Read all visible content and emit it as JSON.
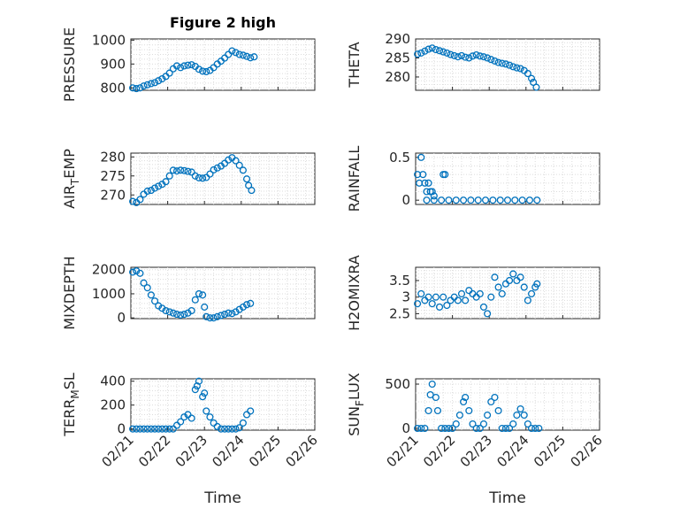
{
  "figure": {
    "title": "Figure 2 high"
  },
  "chart_data": [
    {
      "type": "scatter",
      "ylabel": "PRESSURE",
      "ylabel_sub": "",
      "ylabel_tail": "",
      "xlabel": "",
      "title": "Figure 2 high",
      "x_date_labels": [],
      "yticks": [
        800,
        900,
        1000
      ],
      "ylim": [
        790,
        1005
      ],
      "xlim": [
        0,
        5
      ],
      "marker": "o",
      "grid": true,
      "points": [
        [
          0.05,
          800
        ],
        [
          0.15,
          797
        ],
        [
          0.25,
          800
        ],
        [
          0.35,
          808
        ],
        [
          0.45,
          813
        ],
        [
          0.55,
          818
        ],
        [
          0.65,
          822
        ],
        [
          0.75,
          830
        ],
        [
          0.85,
          838
        ],
        [
          0.95,
          848
        ],
        [
          1.05,
          862
        ],
        [
          1.15,
          880
        ],
        [
          1.25,
          892
        ],
        [
          1.35,
          885
        ],
        [
          1.45,
          892
        ],
        [
          1.55,
          895
        ],
        [
          1.65,
          897
        ],
        [
          1.75,
          890
        ],
        [
          1.85,
          878
        ],
        [
          1.95,
          870
        ],
        [
          2.05,
          868
        ],
        [
          2.15,
          873
        ],
        [
          2.25,
          885
        ],
        [
          2.35,
          900
        ],
        [
          2.45,
          912
        ],
        [
          2.55,
          925
        ],
        [
          2.65,
          940
        ],
        [
          2.75,
          955
        ],
        [
          2.85,
          948
        ],
        [
          2.95,
          940
        ],
        [
          3.05,
          937
        ],
        [
          3.15,
          932
        ],
        [
          3.25,
          926
        ],
        [
          3.35,
          930
        ]
      ]
    },
    {
      "type": "scatter",
      "ylabel": "THETA",
      "ylabel_sub": "",
      "ylabel_tail": "",
      "xlabel": "",
      "x_date_labels": [],
      "yticks": [
        280,
        285,
        290
      ],
      "ylim": [
        276.5,
        290
      ],
      "xlim": [
        0,
        5
      ],
      "marker": "o",
      "grid": true,
      "points": [
        [
          0.05,
          286
        ],
        [
          0.15,
          286.3
        ],
        [
          0.25,
          286.8
        ],
        [
          0.35,
          287.3
        ],
        [
          0.45,
          287.6
        ],
        [
          0.55,
          287.2
        ],
        [
          0.65,
          286.9
        ],
        [
          0.75,
          286.6
        ],
        [
          0.85,
          286.3
        ],
        [
          0.95,
          285.9
        ],
        [
          1.05,
          285.6
        ],
        [
          1.15,
          285.3
        ],
        [
          1.25,
          285.6
        ],
        [
          1.35,
          285.2
        ],
        [
          1.45,
          285
        ],
        [
          1.55,
          285.5
        ],
        [
          1.65,
          285.8
        ],
        [
          1.75,
          285.5
        ],
        [
          1.85,
          285.3
        ],
        [
          1.95,
          285
        ],
        [
          2.05,
          284.6
        ],
        [
          2.15,
          284.2
        ],
        [
          2.25,
          283.8
        ],
        [
          2.35,
          283.6
        ],
        [
          2.45,
          283.4
        ],
        [
          2.55,
          283.1
        ],
        [
          2.65,
          282.7
        ],
        [
          2.75,
          282.4
        ],
        [
          2.85,
          282.2
        ],
        [
          2.95,
          281.7
        ],
        [
          3.05,
          280.9
        ],
        [
          3.15,
          279.6
        ],
        [
          3.2,
          278.6
        ],
        [
          3.28,
          277.3
        ]
      ]
    },
    {
      "type": "scatter",
      "ylabel": "AIR",
      "ylabel_sub": "T",
      "ylabel_tail": "EMP",
      "xlabel": "",
      "x_date_labels": [],
      "yticks": [
        270,
        275,
        280
      ],
      "ylim": [
        267.5,
        281
      ],
      "xlim": [
        0,
        5
      ],
      "marker": "o",
      "grid": true,
      "points": [
        [
          0.05,
          268.3
        ],
        [
          0.15,
          268
        ],
        [
          0.25,
          268.8
        ],
        [
          0.35,
          270.2
        ],
        [
          0.45,
          271
        ],
        [
          0.55,
          271.2
        ],
        [
          0.65,
          271.8
        ],
        [
          0.75,
          272.3
        ],
        [
          0.85,
          272.8
        ],
        [
          0.95,
          273.5
        ],
        [
          1.05,
          275
        ],
        [
          1.15,
          276.5
        ],
        [
          1.25,
          276.3
        ],
        [
          1.35,
          276.5
        ],
        [
          1.45,
          276.4
        ],
        [
          1.55,
          276.2
        ],
        [
          1.65,
          276
        ],
        [
          1.75,
          275
        ],
        [
          1.85,
          274.5
        ],
        [
          1.95,
          274.4
        ],
        [
          2.05,
          274.6
        ],
        [
          2.15,
          275.5
        ],
        [
          2.25,
          276.6
        ],
        [
          2.35,
          277.1
        ],
        [
          2.45,
          277.6
        ],
        [
          2.55,
          278.3
        ],
        [
          2.65,
          279.2
        ],
        [
          2.75,
          279.8
        ],
        [
          2.85,
          279
        ],
        [
          2.95,
          277.8
        ],
        [
          3.05,
          276.5
        ],
        [
          3.15,
          274.2
        ],
        [
          3.2,
          272.5
        ],
        [
          3.28,
          271.2
        ]
      ]
    },
    {
      "type": "scatter",
      "ylabel": "RAINFALL",
      "ylabel_sub": "",
      "ylabel_tail": "",
      "xlabel": "",
      "x_date_labels": [],
      "yticks": [
        0,
        0.5
      ],
      "ytick_labels": [
        "0",
        "0.5"
      ],
      "ylim": [
        -0.05,
        0.55
      ],
      "xlim": [
        0,
        5
      ],
      "marker": "o",
      "grid": true,
      "points": [
        [
          0.05,
          0.3
        ],
        [
          0.1,
          0.2
        ],
        [
          0.15,
          0.5
        ],
        [
          0.2,
          0.3
        ],
        [
          0.25,
          0.2
        ],
        [
          0.3,
          0.1
        ],
        [
          0.35,
          0.2
        ],
        [
          0.4,
          0.1
        ],
        [
          0.45,
          0.1
        ],
        [
          0.5,
          0.05
        ],
        [
          0.75,
          0.3
        ],
        [
          0.8,
          0.3
        ],
        [
          0.3,
          0
        ],
        [
          0.5,
          0
        ],
        [
          0.7,
          0
        ],
        [
          0.9,
          0
        ],
        [
          1.1,
          0
        ],
        [
          1.3,
          0
        ],
        [
          1.5,
          0
        ],
        [
          1.7,
          0
        ],
        [
          1.9,
          0
        ],
        [
          2.1,
          0
        ],
        [
          2.3,
          0
        ],
        [
          2.5,
          0
        ],
        [
          2.7,
          0
        ],
        [
          2.9,
          0
        ],
        [
          3.1,
          0
        ],
        [
          3.3,
          0
        ]
      ]
    },
    {
      "type": "scatter",
      "ylabel": "MIXDEPTH",
      "ylabel_sub": "",
      "ylabel_tail": "",
      "xlabel": "",
      "x_date_labels": [],
      "yticks": [
        0,
        1000,
        2000
      ],
      "ylim": [
        -30,
        2100
      ],
      "xlim": [
        0,
        5
      ],
      "marker": "o",
      "grid": true,
      "points": [
        [
          0.05,
          1900
        ],
        [
          0.15,
          1950
        ],
        [
          0.25,
          1850
        ],
        [
          0.35,
          1450
        ],
        [
          0.45,
          1250
        ],
        [
          0.55,
          950
        ],
        [
          0.65,
          700
        ],
        [
          0.75,
          500
        ],
        [
          0.85,
          400
        ],
        [
          0.95,
          300
        ],
        [
          1.05,
          250
        ],
        [
          1.15,
          200
        ],
        [
          1.25,
          150
        ],
        [
          1.35,
          120
        ],
        [
          1.45,
          150
        ],
        [
          1.55,
          200
        ],
        [
          1.65,
          300
        ],
        [
          1.75,
          750
        ],
        [
          1.85,
          1000
        ],
        [
          1.95,
          950
        ],
        [
          2.0,
          450
        ],
        [
          2.05,
          50
        ],
        [
          2.15,
          0
        ],
        [
          2.25,
          0
        ],
        [
          2.35,
          50
        ],
        [
          2.45,
          100
        ],
        [
          2.55,
          150
        ],
        [
          2.65,
          200
        ],
        [
          2.75,
          180
        ],
        [
          2.85,
          250
        ],
        [
          2.95,
          350
        ],
        [
          3.05,
          450
        ],
        [
          3.15,
          550
        ],
        [
          3.25,
          600
        ]
      ]
    },
    {
      "type": "scatter",
      "ylabel": "H2OMIXRA",
      "ylabel_sub": "",
      "ylabel_tail": "",
      "xlabel": "",
      "x_date_labels": [],
      "yticks": [
        2.5,
        3,
        3.5
      ],
      "ytick_labels": [
        "2.5",
        "3",
        "3.5"
      ],
      "ylim": [
        2.35,
        3.9
      ],
      "xlim": [
        0,
        5
      ],
      "marker": "o",
      "grid": true,
      "points": [
        [
          0.05,
          2.8
        ],
        [
          0.15,
          3.1
        ],
        [
          0.25,
          2.9
        ],
        [
          0.35,
          3
        ],
        [
          0.45,
          2.8
        ],
        [
          0.55,
          3
        ],
        [
          0.65,
          2.7
        ],
        [
          0.75,
          3
        ],
        [
          0.85,
          2.75
        ],
        [
          0.95,
          2.9
        ],
        [
          1.05,
          3
        ],
        [
          1.15,
          2.9
        ],
        [
          1.25,
          3.1
        ],
        [
          1.35,
          2.9
        ],
        [
          1.45,
          3.2
        ],
        [
          1.55,
          3.1
        ],
        [
          1.65,
          3
        ],
        [
          1.75,
          3.1
        ],
        [
          1.85,
          2.7
        ],
        [
          1.95,
          2.5
        ],
        [
          2.05,
          3
        ],
        [
          2.15,
          3.6
        ],
        [
          2.25,
          3.3
        ],
        [
          2.35,
          3.1
        ],
        [
          2.45,
          3.4
        ],
        [
          2.55,
          3.5
        ],
        [
          2.65,
          3.7
        ],
        [
          2.75,
          3.5
        ],
        [
          2.85,
          3.6
        ],
        [
          2.95,
          3.3
        ],
        [
          3.05,
          2.9
        ],
        [
          3.15,
          3.1
        ],
        [
          3.25,
          3.3
        ],
        [
          3.3,
          3.4
        ]
      ]
    },
    {
      "type": "scatter",
      "ylabel": "TERR",
      "ylabel_sub": "M",
      "ylabel_tail": "SL",
      "xlabel": "Time",
      "x_date_labels": [
        "02/21",
        "02/22",
        "02/23",
        "02/24",
        "02/25",
        "02/26"
      ],
      "yticks": [
        0,
        200,
        400
      ],
      "ylim": [
        -10,
        420
      ],
      "xlim": [
        0,
        5
      ],
      "marker": "o",
      "grid": true,
      "points": [
        [
          0.05,
          0
        ],
        [
          0.15,
          0
        ],
        [
          0.25,
          0
        ],
        [
          0.35,
          0
        ],
        [
          0.45,
          0
        ],
        [
          0.55,
          0
        ],
        [
          0.65,
          0
        ],
        [
          0.75,
          0
        ],
        [
          0.85,
          0
        ],
        [
          0.95,
          0
        ],
        [
          1.05,
          0
        ],
        [
          1.15,
          0
        ],
        [
          1.25,
          30
        ],
        [
          1.35,
          60
        ],
        [
          1.45,
          100
        ],
        [
          1.55,
          120
        ],
        [
          1.65,
          90
        ],
        [
          1.75,
          330
        ],
        [
          1.8,
          360
        ],
        [
          1.85,
          400
        ],
        [
          1.95,
          270
        ],
        [
          2.0,
          300
        ],
        [
          2.05,
          150
        ],
        [
          2.15,
          100
        ],
        [
          2.25,
          50
        ],
        [
          2.35,
          20
        ],
        [
          2.45,
          0
        ],
        [
          2.55,
          0
        ],
        [
          2.65,
          0
        ],
        [
          2.75,
          0
        ],
        [
          2.85,
          0
        ],
        [
          2.95,
          10
        ],
        [
          3.05,
          50
        ],
        [
          3.15,
          120
        ],
        [
          3.25,
          150
        ]
      ]
    },
    {
      "type": "scatter",
      "ylabel": "SUN",
      "ylabel_sub": "F",
      "ylabel_tail": "LUX",
      "xlabel": "Time",
      "x_date_labels": [
        "02/21",
        "02/22",
        "02/23",
        "02/24",
        "02/25",
        "02/26"
      ],
      "yticks": [
        0,
        500
      ],
      "ylim": [
        -20,
        560
      ],
      "xlim": [
        0,
        5
      ],
      "marker": "o",
      "grid": true,
      "points": [
        [
          0.05,
          0
        ],
        [
          0.15,
          0
        ],
        [
          0.25,
          0
        ],
        [
          0.35,
          200
        ],
        [
          0.4,
          380
        ],
        [
          0.45,
          500
        ],
        [
          0.55,
          350
        ],
        [
          0.6,
          200
        ],
        [
          0.7,
          0
        ],
        [
          0.8,
          0
        ],
        [
          0.9,
          0
        ],
        [
          1.0,
          0
        ],
        [
          1.1,
          50
        ],
        [
          1.2,
          150
        ],
        [
          1.3,
          300
        ],
        [
          1.35,
          350
        ],
        [
          1.45,
          200
        ],
        [
          1.55,
          50
        ],
        [
          1.65,
          0
        ],
        [
          1.75,
          0
        ],
        [
          1.85,
          50
        ],
        [
          1.95,
          150
        ],
        [
          2.05,
          300
        ],
        [
          2.15,
          350
        ],
        [
          2.25,
          200
        ],
        [
          2.35,
          0
        ],
        [
          2.45,
          0
        ],
        [
          2.55,
          0
        ],
        [
          2.65,
          50
        ],
        [
          2.75,
          150
        ],
        [
          2.85,
          220
        ],
        [
          2.95,
          150
        ],
        [
          3.05,
          50
        ],
        [
          3.15,
          0
        ],
        [
          3.25,
          0
        ],
        [
          3.35,
          0
        ]
      ]
    }
  ]
}
